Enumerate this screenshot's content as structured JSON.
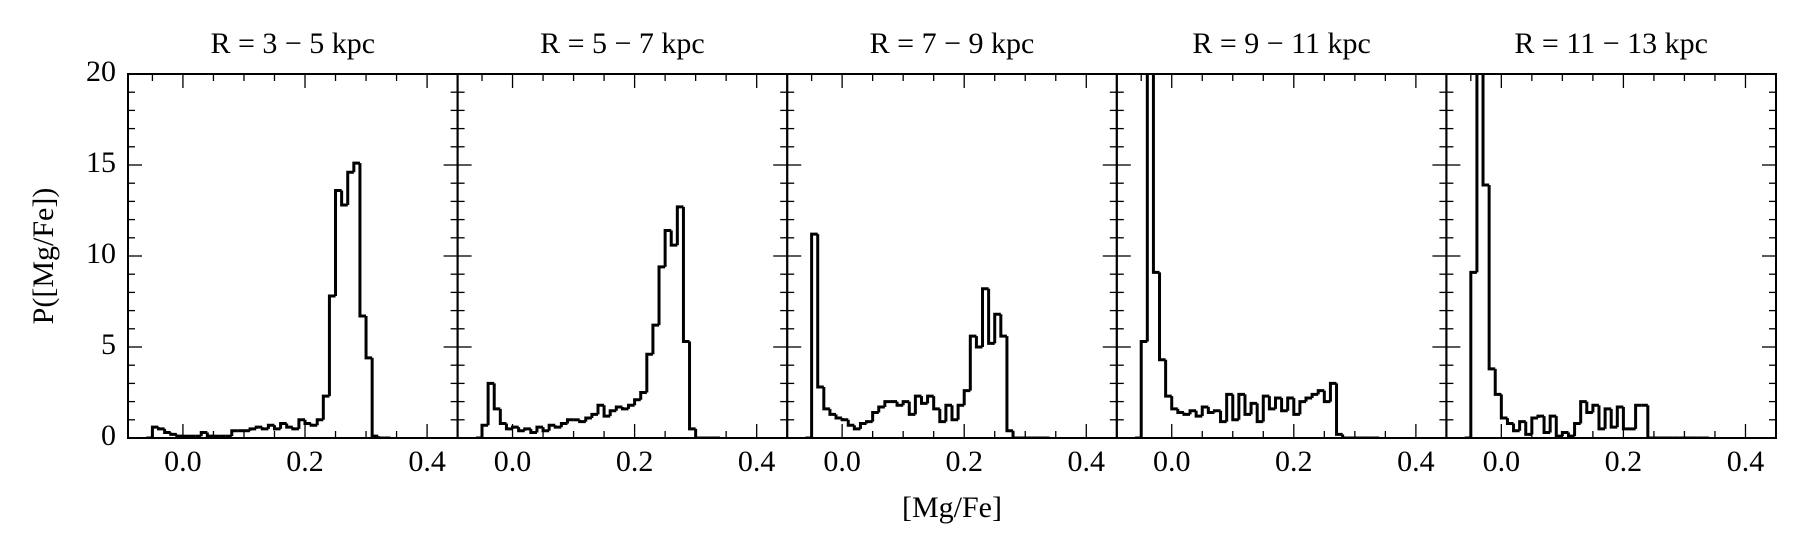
{
  "chart_data": [
    {
      "type": "histogram",
      "title": "R = 3 − 5 kpc",
      "y_label": "P([Mg/Fe])",
      "color": "#000000",
      "bins": [
        -0.06,
        -0.05,
        -0.04,
        -0.03,
        -0.02,
        -0.01,
        0.0,
        0.01,
        0.02,
        0.03,
        0.04,
        0.05,
        0.06,
        0.07,
        0.08,
        0.09,
        0.1,
        0.11,
        0.12,
        0.13,
        0.14,
        0.15,
        0.16,
        0.17,
        0.18,
        0.19,
        0.2,
        0.21,
        0.22,
        0.23,
        0.24,
        0.25,
        0.26,
        0.27,
        0.28,
        0.29,
        0.3,
        0.31,
        0.32,
        0.33,
        0.34
      ],
      "counts": [
        0,
        0.6,
        0.5,
        0.3,
        0.2,
        0.1,
        0.1,
        0.1,
        0.1,
        0.3,
        0.1,
        0.1,
        0.1,
        0.1,
        0.4,
        0.4,
        0.4,
        0.5,
        0.6,
        0.5,
        0.7,
        0.5,
        0.8,
        0.6,
        0.5,
        1.0,
        0.8,
        0.7,
        1.0,
        2.3,
        7.8,
        13.6,
        12.8,
        14.6,
        15.1,
        6.7,
        4.4,
        0.1,
        0,
        0
      ],
      "xlim": [
        -0.09,
        0.45
      ],
      "xticks": [
        {
          "value": 0,
          "label": "0.0"
        },
        0.2,
        0.4
      ],
      "ylim": [
        0,
        20
      ],
      "yticks": [
        0,
        5,
        10,
        15,
        20
      ]
    },
    {
      "type": "histogram",
      "title": "R = 5 − 7 kpc",
      "color": "#000000",
      "bins": [
        -0.06,
        -0.05,
        -0.04,
        -0.03,
        -0.02,
        -0.01,
        0.0,
        0.01,
        0.02,
        0.03,
        0.04,
        0.05,
        0.06,
        0.07,
        0.08,
        0.09,
        0.1,
        0.11,
        0.12,
        0.13,
        0.14,
        0.15,
        0.16,
        0.17,
        0.18,
        0.19,
        0.2,
        0.21,
        0.22,
        0.23,
        0.24,
        0.25,
        0.26,
        0.27,
        0.28,
        0.29,
        0.3,
        0.31,
        0.32,
        0.33,
        0.34
      ],
      "counts": [
        0,
        0.7,
        3.0,
        1.6,
        0.8,
        0.5,
        0.6,
        0.4,
        0.5,
        0.3,
        0.6,
        0.4,
        0.7,
        0.6,
        0.8,
        1.0,
        1.0,
        0.9,
        1.1,
        1.3,
        1.8,
        1.2,
        1.5,
        1.7,
        1.6,
        1.8,
        2.1,
        2.5,
        4.6,
        6.2,
        9.4,
        11.4,
        10.6,
        12.7,
        5.3,
        0.5,
        0,
        0,
        0,
        0
      ],
      "xlim": [
        -0.09,
        0.45
      ],
      "xticks": [
        {
          "value": 0,
          "label": "0.0"
        },
        0.2,
        0.4
      ]
    },
    {
      "type": "histogram",
      "title": "R = 7 − 9 kpc",
      "x_label": "[Mg/Fe]",
      "color": "#000000",
      "bins": [
        -0.06,
        -0.05,
        -0.04,
        -0.03,
        -0.02,
        -0.01,
        0.0,
        0.01,
        0.02,
        0.03,
        0.04,
        0.05,
        0.06,
        0.07,
        0.08,
        0.09,
        0.1,
        0.11,
        0.12,
        0.13,
        0.14,
        0.15,
        0.16,
        0.17,
        0.18,
        0.19,
        0.2,
        0.21,
        0.22,
        0.23,
        0.24,
        0.25,
        0.26,
        0.27,
        0.28,
        0.29,
        0.3,
        0.31,
        0.32,
        0.33,
        0.34
      ],
      "counts": [
        0,
        11.2,
        2.8,
        1.6,
        1.3,
        1.1,
        1.0,
        0.7,
        0.5,
        0.8,
        0.9,
        1.4,
        1.7,
        2.0,
        2.0,
        1.8,
        2.0,
        1.3,
        2.3,
        1.9,
        2.3,
        1.6,
        0.9,
        1.8,
        1.0,
        1.8,
        2.6,
        5.6,
        5.0,
        8.2,
        5.2,
        6.8,
        5.6,
        0.4,
        0,
        0,
        0,
        0,
        0,
        0
      ],
      "xlim": [
        -0.09,
        0.45
      ],
      "xticks": [
        {
          "value": 0,
          "label": "0.0"
        },
        0.2,
        0.4
      ]
    },
    {
      "type": "histogram",
      "title": "R = 9 − 11 kpc",
      "color": "#000000",
      "bins": [
        -0.06,
        -0.05,
        -0.04,
        -0.03,
        -0.02,
        -0.01,
        0.0,
        0.01,
        0.02,
        0.03,
        0.04,
        0.05,
        0.06,
        0.07,
        0.08,
        0.09,
        0.1,
        0.11,
        0.12,
        0.13,
        0.14,
        0.15,
        0.16,
        0.17,
        0.18,
        0.19,
        0.2,
        0.21,
        0.22,
        0.23,
        0.24,
        0.25,
        0.26,
        0.27,
        0.28,
        0.29,
        0.3,
        0.31,
        0.32,
        0.33,
        0.34
      ],
      "counts": [
        0,
        5.3,
        28,
        9.1,
        4.3,
        2.3,
        1.6,
        1.4,
        1.3,
        1.5,
        1.2,
        1.7,
        1.4,
        1.5,
        0.9,
        2.4,
        1.0,
        2.4,
        1.3,
        1.9,
        0.9,
        2.3,
        1.6,
        2.2,
        1.5,
        2.2,
        1.3,
        2.0,
        2.2,
        2.4,
        2.6,
        2.0,
        3.0,
        0.2,
        0,
        0,
        0,
        0,
        0,
        0
      ],
      "xlim": [
        -0.09,
        0.45
      ],
      "xticks": [
        {
          "value": 0,
          "label": "0.0"
        },
        0.2,
        0.4
      ]
    },
    {
      "type": "histogram",
      "title": "R = 11 − 13 kpc",
      "color": "#000000",
      "bins": [
        -0.06,
        -0.05,
        -0.04,
        -0.03,
        -0.02,
        -0.01,
        0.0,
        0.01,
        0.02,
        0.03,
        0.04,
        0.05,
        0.06,
        0.07,
        0.08,
        0.09,
        0.1,
        0.11,
        0.12,
        0.13,
        0.14,
        0.15,
        0.16,
        0.17,
        0.18,
        0.19,
        0.2,
        0.21,
        0.22,
        0.23,
        0.24,
        0.25,
        0.26,
        0.27,
        0.28,
        0.29,
        0.3,
        0.31,
        0.32,
        0.33,
        0.34
      ],
      "counts": [
        0,
        9.1,
        25,
        13.9,
        3.8,
        2.4,
        1.1,
        0.8,
        0.4,
        0.9,
        0.2,
        1.1,
        1.2,
        0.3,
        1.2,
        0.1,
        0.3,
        0.1,
        0.8,
        2.0,
        1.4,
        1.8,
        0.5,
        1.6,
        0.6,
        1.7,
        0.5,
        0.5,
        1.8,
        1.8,
        0,
        0,
        0,
        0,
        0,
        0,
        0,
        0,
        0,
        0
      ],
      "xlim": [
        -0.09,
        0.45
      ],
      "xticks": [
        {
          "value": 0,
          "label": "0.0"
        },
        0.2,
        0.4
      ]
    }
  ]
}
